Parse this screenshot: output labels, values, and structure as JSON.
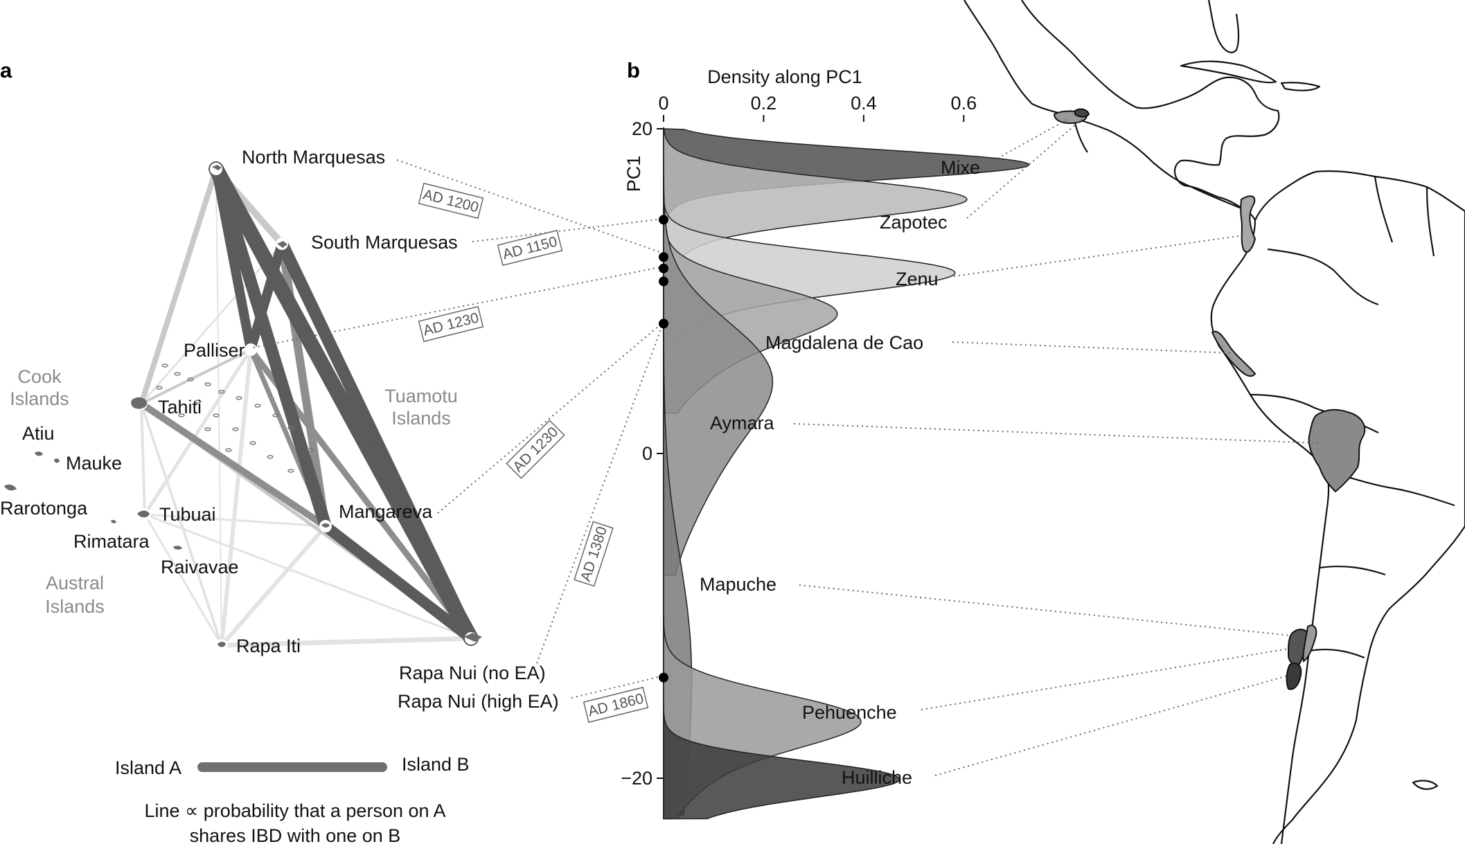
{
  "panels": {
    "a": "a",
    "b": "b"
  },
  "colors": {
    "edge_dark": "#5b5b5b",
    "edge_mid": "#8e8e8e",
    "edge_light": "#c9c9c9",
    "edge_faint": "#e3e3e3",
    "island_fill": "#6a6a6a",
    "density_fills": [
      "#505050",
      "#b9b9b9",
      "#cfcfcf",
      "#a6a6a6",
      "#8c8c8c",
      "#7a7a7a",
      "#9a9a9a",
      "#3c3c3c"
    ]
  },
  "network": {
    "nodes": [
      {
        "id": "north_marquesas",
        "label": "North Marquesas"
      },
      {
        "id": "south_marquesas",
        "label": "South Marquesas"
      },
      {
        "id": "palliser",
        "label": "Palliser"
      },
      {
        "id": "tahiti",
        "label": "Tahiti"
      },
      {
        "id": "tubuai",
        "label": "Tubuai"
      },
      {
        "id": "mangareva",
        "label": "Mangareva"
      },
      {
        "id": "rapa_iti",
        "label": "Rapa Iti"
      },
      {
        "id": "rapa_nui",
        "label": "Rapa Nui (no EA)"
      },
      {
        "id": "atiu",
        "label": "Atiu"
      },
      {
        "id": "mauke",
        "label": "Mauke"
      },
      {
        "id": "rarotonga",
        "label": "Rarotonga"
      },
      {
        "id": "rimatara",
        "label": "Rimatara"
      },
      {
        "id": "raivavae",
        "label": "Raivavae"
      }
    ],
    "rapa_nui_high_ea_label": "Rapa Nui (high EA)",
    "group_labels": {
      "cook": [
        "Cook",
        "Islands"
      ],
      "tuamotu": [
        "Tuamotu",
        "Islands"
      ],
      "austral": [
        "Austral",
        "Islands"
      ]
    },
    "dates": [
      "AD 1200",
      "AD 1150",
      "AD 1230",
      "AD 1230",
      "AD 1380",
      "AD 1860"
    ],
    "legend": {
      "island_a": "Island A",
      "island_b": "Island B",
      "caption_line1": "Line ∝ probability that a person on A",
      "caption_line2": "shares IBD with one on B"
    }
  },
  "chart_data": {
    "type": "area",
    "xlabel": "Density along PC1",
    "ylabel": "PC1",
    "x_ticks": [
      "0",
      "0.2",
      "0.4",
      "0.6"
    ],
    "y_ticks": [
      "20",
      "0",
      "−20"
    ],
    "xlim": [
      0,
      0.72
    ],
    "ylim": [
      -22.5,
      20
    ],
    "series": [
      {
        "name": "Mixe",
        "peak_pc1": 17.8,
        "peak_density": 0.72
      },
      {
        "name": "Zapotec",
        "peak_pc1": 15.7,
        "peak_density": 0.58
      },
      {
        "name": "Zenu",
        "peak_pc1": 11.2,
        "peak_density": 0.54
      },
      {
        "name": "Magdalena de Cao",
        "peak_pc1": 8.9,
        "peak_density": 0.28
      },
      {
        "name": "Aymara",
        "peak_pc1": 5.3,
        "peak_density": 0.16
      },
      {
        "name": "Mapuche",
        "peak_pc1": -10.5,
        "peak_density": 0.03
      },
      {
        "name": "Pehuenche",
        "peak_pc1": -16.3,
        "peak_density": 0.34
      },
      {
        "name": "Huilliche",
        "peak_pc1": -20.0,
        "peak_density": 0.44
      }
    ],
    "polynesian_points_pc1": [
      14.4,
      12.1,
      11.4,
      10.6,
      8.0,
      -13.8
    ]
  }
}
